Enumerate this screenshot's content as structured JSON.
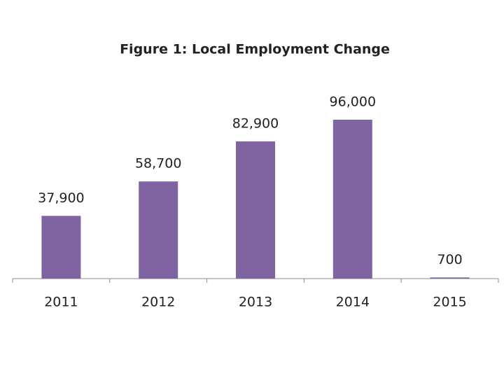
{
  "chart_data": {
    "type": "bar",
    "title": "Figure 1: Local Employment Change",
    "categories": [
      "2011",
      "2012",
      "2013",
      "2014",
      "2015"
    ],
    "values": [
      37900,
      58700,
      82900,
      96000,
      700
    ],
    "value_labels": [
      "37,900",
      "58,700",
      "82,900",
      "96,000",
      "700"
    ],
    "color": "#8064a2"
  }
}
